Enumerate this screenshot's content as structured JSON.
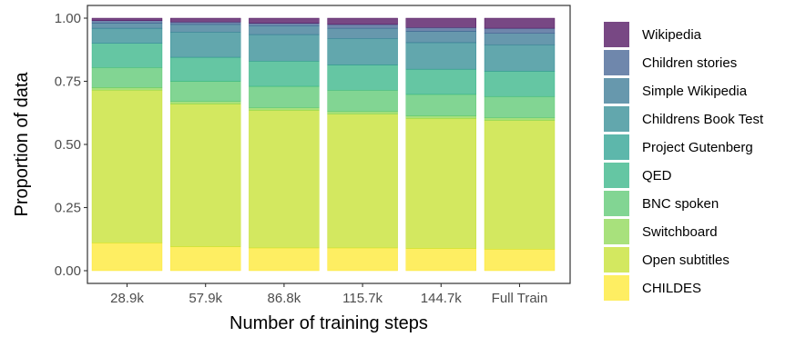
{
  "chart_data": {
    "type": "bar",
    "stacked": true,
    "xlabel": "Number of training steps",
    "ylabel": "Proportion of data",
    "ylim": [
      0,
      1
    ],
    "yticks": [
      0,
      0.25,
      0.5,
      0.75,
      1
    ],
    "ytick_labels": [
      "0.00",
      "0.25",
      "0.50",
      "0.75",
      "1.00"
    ],
    "categories": [
      "28.9k",
      "57.9k",
      "86.8k",
      "115.7k",
      "144.7k",
      "Full Train"
    ],
    "legend_position": "right",
    "grid": false,
    "series": [
      {
        "name": "CHILDES",
        "color": "#FDE725",
        "values": [
          0.11,
          0.095,
          0.09,
          0.09,
          0.088,
          0.085
        ]
      },
      {
        "name": "Open subtitles",
        "color": "#C2DF23",
        "values": [
          0.605,
          0.565,
          0.545,
          0.53,
          0.515,
          0.51
        ]
      },
      {
        "name": "Switchboard",
        "color": "#86D549",
        "values": [
          0.01,
          0.01,
          0.01,
          0.01,
          0.01,
          0.01
        ]
      },
      {
        "name": "BNC spoken",
        "color": "#52C569",
        "values": [
          0.08,
          0.08,
          0.085,
          0.085,
          0.085,
          0.085
        ]
      },
      {
        "name": "QED",
        "color": "#2AB07F",
        "values": [
          0.095,
          0.095,
          0.1,
          0.1,
          0.1,
          0.1
        ]
      },
      {
        "name": "Project Gutenberg",
        "color": "#1E9B8A",
        "values": [
          0.0,
          0.0,
          0.0,
          0.0,
          0.0,
          0.0
        ]
      },
      {
        "name": "Childrens Book Test",
        "color": "#25858E",
        "values": [
          0.06,
          0.1,
          0.105,
          0.105,
          0.105,
          0.105
        ]
      },
      {
        "name": "Simple Wikipedia",
        "color": "#2D708E",
        "values": [
          0.02,
          0.03,
          0.035,
          0.04,
          0.045,
          0.045
        ]
      },
      {
        "name": "Children stories",
        "color": "#38598C",
        "values": [
          0.01,
          0.01,
          0.01,
          0.015,
          0.015,
          0.02
        ]
      },
      {
        "name": "Wikipedia",
        "color": "#440154",
        "values": [
          0.01,
          0.015,
          0.02,
          0.025,
          0.037,
          0.04
        ]
      }
    ]
  }
}
